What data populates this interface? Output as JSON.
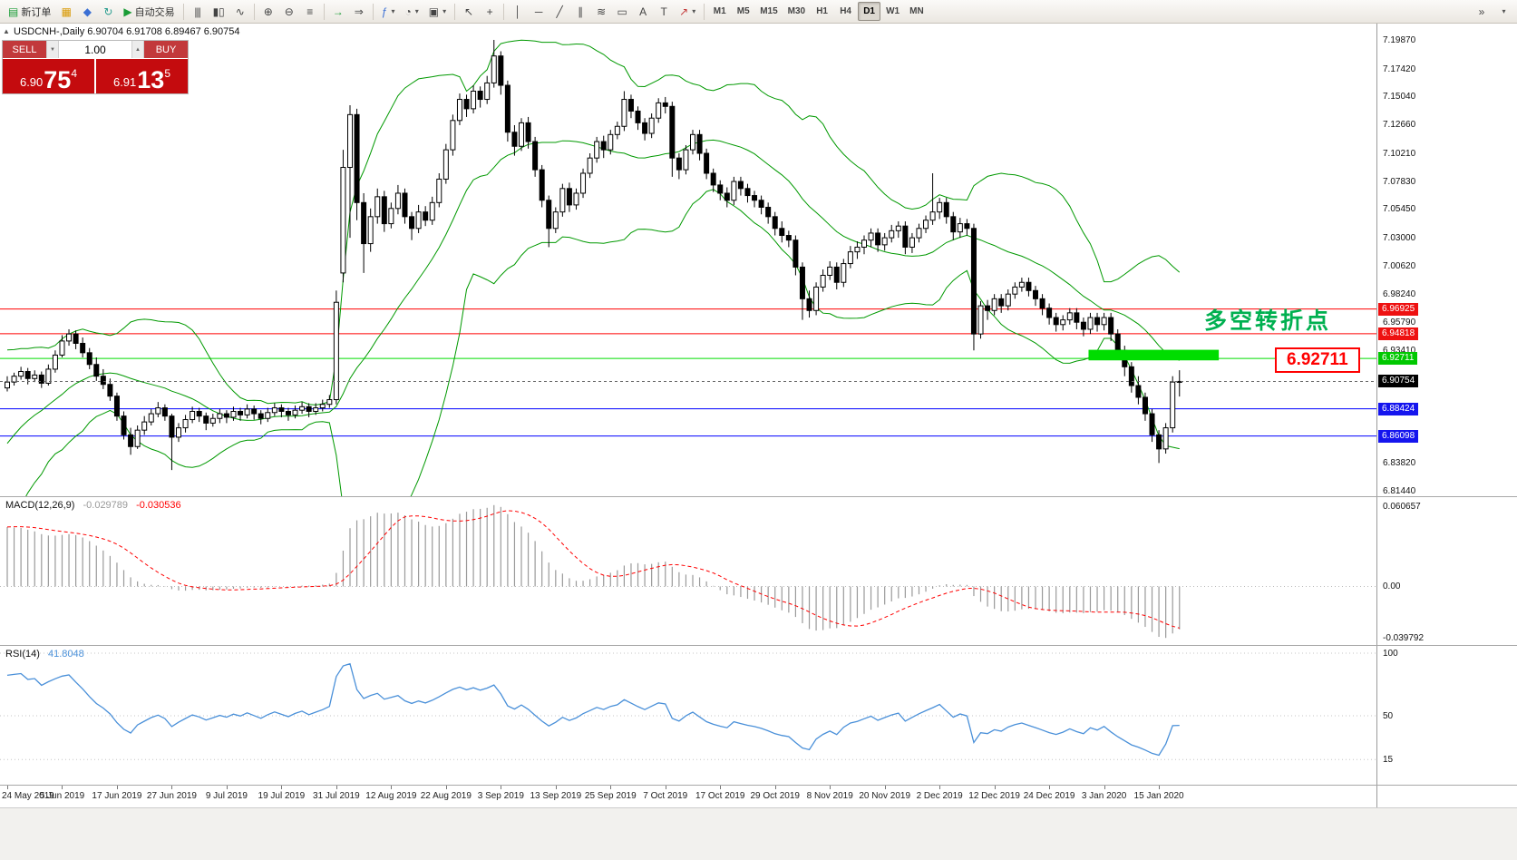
{
  "toolbar": {
    "new_order_label": "新订单",
    "autotrading_label": "自动交易",
    "timeframes": [
      "M1",
      "M5",
      "M15",
      "M30",
      "H1",
      "H4",
      "D1",
      "W1",
      "MN"
    ],
    "active_timeframe": "D1",
    "icons": {
      "panel_toggle": "▲",
      "new_order": "▤",
      "charts": "▦",
      "profiles": "◆",
      "refresh": "↻",
      "play": "▶",
      "bars": "|||",
      "candles": "▮▯",
      "line": "∿",
      "zoom_in": "⊕",
      "zoom_out": "⊖",
      "objects": "≡",
      "scroll": "→",
      "shift": "⇒",
      "indicators": "ƒ",
      "periods": "◔",
      "templates": "▣",
      "cursor": "↖",
      "crosshair": "+",
      "vline": "│",
      "hline": "─",
      "trend": "╱",
      "channel": "∥",
      "fibo": "≋",
      "rect_tool": "▭",
      "text_tool": "A",
      "label_tool": "T",
      "arrows": "↗",
      "caret": "▾",
      "overflow": "»",
      "spin_up": "▲",
      "spin_down": "▼"
    }
  },
  "chart_header": {
    "symbol_period": "USDCNH-,Daily",
    "ohlc": "6.90704 6.91708 6.89467 6.90754"
  },
  "trade_panel": {
    "sell_label": "SELL",
    "buy_label": "BUY",
    "volume": "1.00",
    "sell_price": {
      "small": "6.90",
      "big": "75",
      "pip": "4"
    },
    "buy_price": {
      "small": "6.91",
      "big": "13",
      "pip": "5"
    }
  },
  "price_axis": {
    "labels": [
      "7.19870",
      "7.17420",
      "7.15040",
      "7.12660",
      "7.10210",
      "7.07830",
      "7.05450",
      "7.03000",
      "7.00620",
      "6.98240",
      "6.95790",
      "6.93410",
      "6.83820",
      "6.81440"
    ],
    "tags": [
      {
        "value": "6.96925",
        "price": 6.96925,
        "bg": "#ee1111",
        "fg": "#ffffff"
      },
      {
        "value": "6.94818",
        "price": 6.94818,
        "bg": "#ee1111",
        "fg": "#ffffff"
      },
      {
        "value": "6.92711",
        "price": 6.92711,
        "bg": "#00c800",
        "fg": "#ffffff"
      },
      {
        "value": "6.90754",
        "price": 6.90754,
        "bg": "#000000",
        "fg": "#ffffff"
      },
      {
        "value": "6.88424",
        "price": 6.88424,
        "bg": "#1515ee",
        "fg": "#ffffff"
      },
      {
        "value": "6.86098",
        "price": 6.86098,
        "bg": "#1515ee",
        "fg": "#ffffff"
      }
    ]
  },
  "levels": [
    {
      "price": 6.96925,
      "color": "#ff0000"
    },
    {
      "price": 6.94818,
      "color": "#ff0000"
    },
    {
      "price": 6.92711,
      "color": "#00dd00"
    },
    {
      "price": 6.88424,
      "color": "#0000ff"
    },
    {
      "price": 6.86098,
      "color": "#0000ff"
    }
  ],
  "current_price": {
    "price": 6.90754,
    "color": "#666666"
  },
  "annotations": {
    "turning_point_text": {
      "text": "多空转折点",
      "color": "#00b050"
    },
    "price_label_box": {
      "text": "6.92711",
      "color": "#ff0000"
    },
    "green_zone": {
      "from_index": 158,
      "to_index": 177,
      "price_top": 6.9345,
      "price_bottom": 6.9255,
      "color": "#00dd00"
    }
  },
  "macd_panel": {
    "label": "MACD(12,26,9)",
    "main_value": "-0.029789",
    "signal_value": "-0.030536",
    "axis_labels": [
      "0.060657",
      "0.00",
      "-0.039792"
    ],
    "params": {
      "fast": 12,
      "slow": 26,
      "signal": 9
    },
    "histogram_color": "#9a9a9a",
    "signal_color": "#ff0000"
  },
  "rsi_panel": {
    "label": "RSI(14)",
    "value": "41.8048",
    "axis_labels": [
      "100",
      "50",
      "15"
    ],
    "period": 14,
    "line_color": "#4a90d9"
  },
  "dates": [
    "24 May 2019",
    "5 Jun 2019",
    "17 Jun 2019",
    "27 Jun 2019",
    "9 Jul 2019",
    "19 Jul 2019",
    "31 Jul 2019",
    "12 Aug 2019",
    "22 Aug 2019",
    "3 Sep 2019",
    "13 Sep 2019",
    "25 Sep 2019",
    "7 Oct 2019",
    "17 Oct 2019",
    "29 Oct 2019",
    "8 Nov 2019",
    "20 Nov 2019",
    "2 Dec 2019",
    "12 Dec 2019",
    "24 Dec 2019",
    "3 Jan 2020",
    "15 Jan 2020"
  ],
  "chart_data": {
    "type": "candlestick",
    "symbol": "USDCNH-",
    "timeframe": "Daily",
    "bollinger": {
      "period": 20,
      "deviation": 2,
      "color": "#009900"
    },
    "prehistory_closes": [
      6.7,
      6.705,
      6.71,
      6.706,
      6.712,
      6.718,
      6.714,
      6.72,
      6.726,
      6.722,
      6.728,
      6.734,
      6.73,
      6.736,
      6.742,
      6.738,
      6.744,
      6.748,
      6.744,
      6.74,
      6.752,
      6.768,
      6.784,
      6.8,
      6.816,
      6.83,
      6.822,
      6.838,
      6.852,
      6.845,
      6.86,
      6.872,
      6.865,
      6.878,
      6.888,
      6.882,
      6.892,
      6.898,
      6.895,
      6.902
    ],
    "candles": [
      [
        6.902,
        6.912,
        6.899,
        6.907
      ],
      [
        6.907,
        6.915,
        6.904,
        6.912
      ],
      [
        6.912,
        6.92,
        6.909,
        6.916
      ],
      [
        6.916,
        6.919,
        6.905,
        6.91
      ],
      [
        6.91,
        6.917,
        6.907,
        6.913
      ],
      [
        6.913,
        6.916,
        6.902,
        6.906
      ],
      [
        6.906,
        6.922,
        6.904,
        6.918
      ],
      [
        6.918,
        6.934,
        6.915,
        6.93
      ],
      [
        6.93,
        6.947,
        6.928,
        6.942
      ],
      [
        6.942,
        6.952,
        6.938,
        6.948
      ],
      [
        6.948,
        6.951,
        6.935,
        6.94
      ],
      [
        6.94,
        6.945,
        6.928,
        6.932
      ],
      [
        6.932,
        6.936,
        6.918,
        6.922
      ],
      [
        6.922,
        6.928,
        6.908,
        6.912
      ],
      [
        6.912,
        6.918,
        6.901,
        6.905
      ],
      [
        6.905,
        6.91,
        6.891,
        6.895
      ],
      [
        6.895,
        6.898,
        6.874,
        6.878
      ],
      [
        6.878,
        6.882,
        6.858,
        6.862
      ],
      [
        6.862,
        6.868,
        6.845,
        6.852
      ],
      [
        6.852,
        6.87,
        6.85,
        6.866
      ],
      [
        6.866,
        6.878,
        6.862,
        6.873
      ],
      [
        6.873,
        6.884,
        6.87,
        6.88
      ],
      [
        6.88,
        6.89,
        6.877,
        6.885
      ],
      [
        6.885,
        6.888,
        6.874,
        6.878
      ],
      [
        6.878,
        6.88,
        6.832,
        6.86
      ],
      [
        6.86,
        6.872,
        6.856,
        6.868
      ],
      [
        6.868,
        6.879,
        6.864,
        6.875
      ],
      [
        6.875,
        6.886,
        6.872,
        6.882
      ],
      [
        6.882,
        6.885,
        6.873,
        6.878
      ],
      [
        6.878,
        6.881,
        6.866,
        6.872
      ],
      [
        6.872,
        6.88,
        6.869,
        6.876
      ],
      [
        6.876,
        6.884,
        6.872,
        6.88
      ],
      [
        6.88,
        6.883,
        6.872,
        6.877
      ],
      [
        6.877,
        6.886,
        6.874,
        6.882
      ],
      [
        6.882,
        6.885,
        6.874,
        6.879
      ],
      [
        6.879,
        6.888,
        6.876,
        6.884
      ],
      [
        6.884,
        6.887,
        6.875,
        6.88
      ],
      [
        6.88,
        6.883,
        6.871,
        6.876
      ],
      [
        6.876,
        6.885,
        6.873,
        6.881
      ],
      [
        6.881,
        6.889,
        6.878,
        6.885
      ],
      [
        6.885,
        6.888,
        6.877,
        6.882
      ],
      [
        6.882,
        6.885,
        6.874,
        6.879
      ],
      [
        6.879,
        6.887,
        6.876,
        6.883
      ],
      [
        6.883,
        6.89,
        6.88,
        6.886
      ],
      [
        6.886,
        6.889,
        6.877,
        6.882
      ],
      [
        6.882,
        6.889,
        6.879,
        6.885
      ],
      [
        6.885,
        6.892,
        6.882,
        6.888
      ],
      [
        6.888,
        6.896,
        6.885,
        6.892
      ],
      [
        6.892,
        6.985,
        6.888,
        6.975
      ],
      [
        7.0,
        7.105,
        6.992,
        7.09
      ],
      [
        7.09,
        7.143,
        7.03,
        7.135
      ],
      [
        7.135,
        7.14,
        7.045,
        7.06
      ],
      [
        7.06,
        7.068,
        7.0,
        7.025
      ],
      [
        7.025,
        7.055,
        7.018,
        7.048
      ],
      [
        7.048,
        7.072,
        7.042,
        7.065
      ],
      [
        7.065,
        7.07,
        7.035,
        7.042
      ],
      [
        7.042,
        7.06,
        7.038,
        7.055
      ],
      [
        7.055,
        7.075,
        7.05,
        7.068
      ],
      [
        7.068,
        7.072,
        7.042,
        7.048
      ],
      [
        7.048,
        7.052,
        7.028,
        7.038
      ],
      [
        7.038,
        7.058,
        7.034,
        7.052
      ],
      [
        7.052,
        7.057,
        7.04,
        7.045
      ],
      [
        7.045,
        7.065,
        7.041,
        7.06
      ],
      [
        7.06,
        7.085,
        7.056,
        7.08
      ],
      [
        7.08,
        7.11,
        7.076,
        7.105
      ],
      [
        7.105,
        7.135,
        7.1,
        7.13
      ],
      [
        7.13,
        7.153,
        7.126,
        7.148
      ],
      [
        7.148,
        7.152,
        7.133,
        7.14
      ],
      [
        7.14,
        7.16,
        7.136,
        7.155
      ],
      [
        7.155,
        7.159,
        7.141,
        7.148
      ],
      [
        7.148,
        7.168,
        7.144,
        7.162
      ],
      [
        7.162,
        7.1987,
        7.158,
        7.185
      ],
      [
        7.185,
        7.189,
        7.152,
        7.16
      ],
      [
        7.16,
        7.164,
        7.112,
        7.12
      ],
      [
        7.12,
        7.126,
        7.1,
        7.108
      ],
      [
        7.108,
        7.132,
        7.104,
        7.128
      ],
      [
        7.128,
        7.133,
        7.106,
        7.112
      ],
      [
        7.112,
        7.116,
        7.082,
        7.088
      ],
      [
        7.088,
        7.092,
        7.056,
        7.062
      ],
      [
        7.062,
        7.066,
        7.022,
        7.038
      ],
      [
        7.038,
        7.056,
        7.034,
        7.052
      ],
      [
        7.052,
        7.076,
        7.048,
        7.072
      ],
      [
        7.072,
        7.077,
        7.052,
        7.058
      ],
      [
        7.058,
        7.072,
        7.054,
        7.068
      ],
      [
        7.068,
        7.089,
        7.064,
        7.085
      ],
      [
        7.085,
        7.102,
        7.081,
        7.098
      ],
      [
        7.098,
        7.116,
        7.094,
        7.112
      ],
      [
        7.112,
        7.117,
        7.098,
        7.105
      ],
      [
        7.105,
        7.122,
        7.101,
        7.118
      ],
      [
        7.118,
        7.129,
        7.114,
        7.125
      ],
      [
        7.125,
        7.155,
        7.121,
        7.148
      ],
      [
        7.148,
        7.152,
        7.132,
        7.138
      ],
      [
        7.138,
        7.142,
        7.122,
        7.128
      ],
      [
        7.128,
        7.132,
        7.113,
        7.119
      ],
      [
        7.119,
        7.136,
        7.115,
        7.132
      ],
      [
        7.132,
        7.149,
        7.128,
        7.145
      ],
      [
        7.145,
        7.15,
        7.136,
        7.142
      ],
      [
        7.142,
        7.146,
        7.082,
        7.098
      ],
      [
        7.098,
        7.102,
        7.08,
        7.088
      ],
      [
        7.088,
        7.109,
        7.084,
        7.105
      ],
      [
        7.105,
        7.122,
        7.101,
        7.118
      ],
      [
        7.118,
        7.122,
        7.096,
        7.102
      ],
      [
        7.102,
        7.106,
        7.08,
        7.085
      ],
      [
        7.085,
        7.089,
        7.069,
        7.075
      ],
      [
        7.075,
        7.079,
        7.062,
        7.068
      ],
      [
        7.068,
        7.073,
        7.056,
        7.062
      ],
      [
        7.062,
        7.082,
        7.058,
        7.078
      ],
      [
        7.078,
        7.082,
        7.066,
        7.072
      ],
      [
        7.072,
        7.076,
        7.06,
        7.066
      ],
      [
        7.066,
        7.07,
        7.056,
        7.062
      ],
      [
        7.062,
        7.066,
        7.05,
        7.056
      ],
      [
        7.056,
        7.06,
        7.042,
        7.048
      ],
      [
        7.048,
        7.052,
        7.032,
        7.038
      ],
      [
        7.038,
        7.044,
        7.026,
        7.032
      ],
      [
        7.032,
        7.036,
        7.022,
        7.028
      ],
      [
        7.028,
        7.032,
        6.998,
        7.005
      ],
      [
        7.005,
        7.009,
        6.96,
        6.978
      ],
      [
        6.978,
        6.985,
        6.962,
        6.968
      ],
      [
        6.968,
        6.992,
        6.964,
        6.988
      ],
      [
        6.988,
        7.003,
        6.984,
        6.998
      ],
      [
        6.998,
        7.01,
        6.994,
        7.005
      ],
      [
        7.005,
        7.009,
        6.986,
        6.992
      ],
      [
        6.992,
        7.012,
        6.988,
        7.008
      ],
      [
        7.008,
        7.023,
        7.004,
        7.018
      ],
      [
        7.018,
        7.027,
        7.012,
        7.022
      ],
      [
        7.022,
        7.032,
        7.016,
        7.028
      ],
      [
        7.028,
        7.038,
        7.022,
        7.034
      ],
      [
        7.034,
        7.038,
        7.018,
        7.024
      ],
      [
        7.024,
        7.034,
        7.019,
        7.03
      ],
      [
        7.03,
        7.041,
        7.026,
        7.036
      ],
      [
        7.036,
        7.044,
        7.03,
        7.04
      ],
      [
        7.04,
        7.044,
        7.016,
        7.022
      ],
      [
        7.022,
        7.034,
        7.017,
        7.03
      ],
      [
        7.03,
        7.042,
        7.026,
        7.038
      ],
      [
        7.038,
        7.049,
        7.034,
        7.045
      ],
      [
        7.045,
        7.085,
        7.041,
        7.052
      ],
      [
        7.052,
        7.064,
        7.046,
        7.06
      ],
      [
        7.06,
        7.064,
        7.042,
        7.048
      ],
      [
        7.048,
        7.052,
        7.028,
        7.035
      ],
      [
        7.035,
        7.047,
        7.03,
        7.042
      ],
      [
        7.042,
        7.046,
        7.032,
        7.038
      ],
      [
        7.038,
        7.042,
        6.934,
        6.948
      ],
      [
        6.948,
        6.976,
        6.944,
        6.972
      ],
      [
        6.972,
        6.977,
        6.96,
        6.968
      ],
      [
        6.968,
        6.982,
        6.964,
        6.978
      ],
      [
        6.978,
        6.982,
        6.966,
        6.972
      ],
      [
        6.972,
        6.986,
        6.968,
        6.982
      ],
      [
        6.982,
        6.992,
        6.978,
        6.988
      ],
      [
        6.988,
        6.996,
        6.984,
        6.992
      ],
      [
        6.992,
        6.996,
        6.98,
        6.985
      ],
      [
        6.985,
        6.989,
        6.972,
        6.978
      ],
      [
        6.978,
        6.982,
        6.964,
        6.97
      ],
      [
        6.97,
        6.974,
        6.956,
        6.962
      ],
      [
        6.962,
        6.966,
        6.95,
        6.956
      ],
      [
        6.956,
        6.964,
        6.951,
        6.96
      ],
      [
        6.96,
        6.97,
        6.956,
        6.966
      ],
      [
        6.966,
        6.97,
        6.952,
        6.958
      ],
      [
        6.958,
        6.962,
        6.946,
        6.952
      ],
      [
        6.952,
        6.966,
        6.948,
        6.962
      ],
      [
        6.962,
        6.966,
        6.95,
        6.956
      ],
      [
        6.956,
        6.966,
        6.951,
        6.962
      ],
      [
        6.962,
        6.966,
        6.942,
        6.948
      ],
      [
        6.948,
        6.952,
        6.928,
        6.934
      ],
      [
        6.934,
        6.938,
        6.912,
        6.92
      ],
      [
        6.92,
        6.924,
        6.898,
        6.904
      ],
      [
        6.904,
        6.912,
        6.888,
        6.894
      ],
      [
        6.894,
        6.898,
        6.874,
        6.88
      ],
      [
        6.88,
        6.884,
        6.856,
        6.862
      ],
      [
        6.862,
        6.866,
        6.838,
        6.85
      ],
      [
        6.85,
        6.872,
        6.846,
        6.868
      ],
      [
        6.868,
        6.912,
        6.864,
        6.907
      ],
      [
        6.90704,
        6.91708,
        6.89467,
        6.90754
      ]
    ]
  }
}
